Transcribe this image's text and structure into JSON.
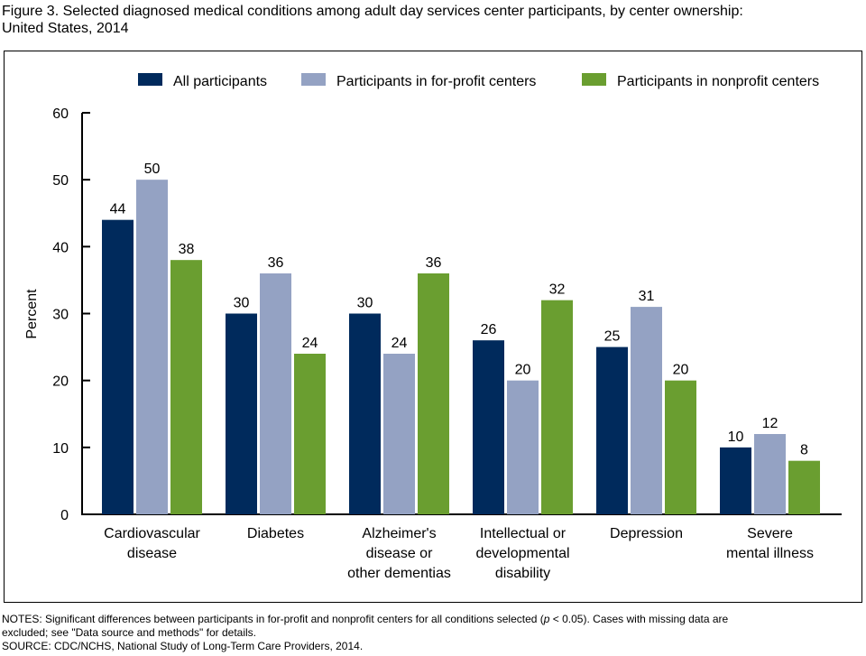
{
  "title_line1": "Figure 3. Selected diagnosed medical conditions among adult day services center participants, by center ownership:",
  "title_line2": "United States, 2014",
  "notes_line1_a": "NOTES: Significant differences between participants in for-profit and nonprofit centers for all conditions selected (",
  "notes_p": "p",
  "notes_line1_b": " < 0.05). Cases with missing data are",
  "notes_line2": "excluded; see \"Data source and methods\" for details.",
  "source": "SOURCE: CDC/NCHS, National Study of Long-Term Care Providers, 2014.",
  "chart_data": {
    "type": "bar",
    "ylabel": "Percent",
    "xlabel": "",
    "ylim": [
      0,
      60
    ],
    "yticks": [
      0,
      10,
      20,
      30,
      40,
      50,
      60
    ],
    "legend_position": "top",
    "grid": false,
    "categories": [
      [
        "Cardiovascular",
        "disease"
      ],
      [
        "Diabetes"
      ],
      [
        "Alzheimer's",
        "disease or",
        "other dementias"
      ],
      [
        "Intellectual or",
        "developmental",
        "disability"
      ],
      [
        "Depression"
      ],
      [
        "Severe",
        "mental illness"
      ]
    ],
    "series": [
      {
        "name": "All participants",
        "color": "#002a5c",
        "values": [
          44,
          30,
          30,
          26,
          25,
          10
        ]
      },
      {
        "name": "Participants in for-profit centers",
        "color": "#94a2c3",
        "values": [
          50,
          36,
          24,
          20,
          31,
          12
        ]
      },
      {
        "name": "Participants in nonprofit centers",
        "color": "#6a9e30",
        "values": [
          38,
          24,
          36,
          32,
          20,
          8
        ]
      }
    ]
  }
}
